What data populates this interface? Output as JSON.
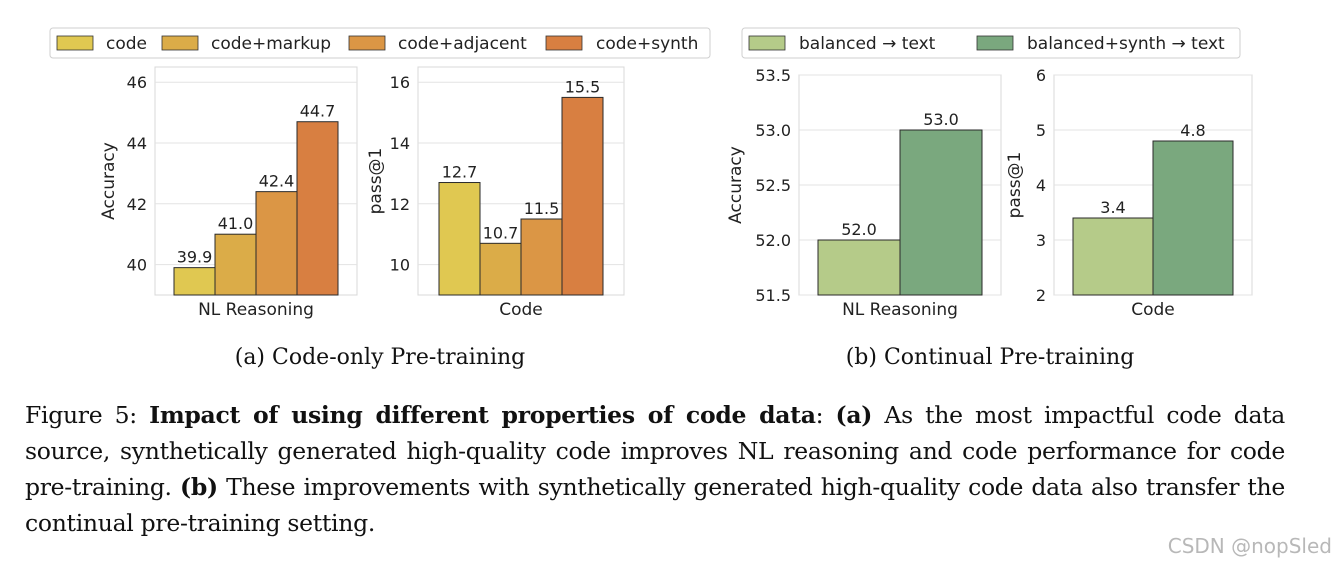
{
  "figure": {
    "label": "Figure 5:",
    "title": "Impact of using different properties of code data",
    "part_a_tag": "(a)",
    "part_a_text": "As the most impactful code data source, synthetically generated high-quality code improves NL reasoning and code performance for code pre-training.",
    "part_b_tag": "(b)",
    "part_b_text": "These improvements with synthetically generated high-quality code data also transfer the continual pre-training setting."
  },
  "watermark": "CSDN @nopSled",
  "subfigures": [
    {
      "caption": "(a) Code-only Pre-training"
    },
    {
      "caption": "(b) Continual Pre-training"
    }
  ],
  "colors": {
    "code": "#e0c851",
    "code_markup": "#dbac48",
    "code_adjacent": "#db9645",
    "code_synth": "#d87f41",
    "balanced_text": "#b5cb89",
    "balanced_synth_text": "#7aa87e"
  },
  "chart_data": [
    {
      "type": "bar",
      "panel": "a-left",
      "xlabel": "NL Reasoning",
      "ylabel": "Accuracy",
      "ylim": [
        39,
        46.5
      ],
      "yticks": [
        40,
        42,
        44,
        46
      ],
      "categories": [
        "NL Reasoning"
      ],
      "series": [
        {
          "name": "code",
          "values": [
            39.9
          ],
          "label": "39.9"
        },
        {
          "name": "code+markup",
          "values": [
            41.0
          ],
          "label": "41.0"
        },
        {
          "name": "code+adjacent",
          "values": [
            42.4
          ],
          "label": "42.4"
        },
        {
          "name": "code+synth",
          "values": [
            44.7
          ],
          "label": "44.7"
        }
      ],
      "legend": "top"
    },
    {
      "type": "bar",
      "panel": "a-right",
      "xlabel": "Code",
      "ylabel": "pass@1",
      "ylim": [
        9,
        16.5
      ],
      "yticks": [
        10,
        12,
        14,
        16
      ],
      "categories": [
        "Code"
      ],
      "series": [
        {
          "name": "code",
          "values": [
            12.7
          ],
          "label": "12.7"
        },
        {
          "name": "code+markup",
          "values": [
            10.7
          ],
          "label": "10.7"
        },
        {
          "name": "code+adjacent",
          "values": [
            11.5
          ],
          "label": "11.5"
        },
        {
          "name": "code+synth",
          "values": [
            15.5
          ],
          "label": "15.5"
        }
      ]
    },
    {
      "type": "bar",
      "panel": "b-left",
      "xlabel": "NL Reasoning",
      "ylabel": "Accuracy",
      "ylim": [
        51.5,
        53.5
      ],
      "yticks": [
        51.5,
        52.0,
        52.5,
        53.0,
        53.5
      ],
      "ytick_labels": [
        "51.5",
        "52.0",
        "52.5",
        "53.0",
        "53.5"
      ],
      "categories": [
        "NL Reasoning"
      ],
      "series": [
        {
          "name": "balanced → text",
          "values": [
            52.0
          ],
          "label": "52.0"
        },
        {
          "name": "balanced+synth → text",
          "values": [
            53.0
          ],
          "label": "53.0"
        }
      ],
      "legend": "top"
    },
    {
      "type": "bar",
      "panel": "b-right",
      "xlabel": "Code",
      "ylabel": "pass@1",
      "ylim": [
        2,
        6
      ],
      "yticks": [
        2,
        3,
        4,
        5,
        6
      ],
      "categories": [
        "Code"
      ],
      "series": [
        {
          "name": "balanced → text",
          "values": [
            3.4
          ],
          "label": "3.4"
        },
        {
          "name": "balanced+synth → text",
          "values": [
            4.8
          ],
          "label": "4.8"
        }
      ]
    }
  ],
  "legends": {
    "a": [
      "code",
      "code+markup",
      "code+adjacent",
      "code+synth"
    ],
    "b": [
      "balanced → text",
      "balanced+synth → text"
    ]
  }
}
